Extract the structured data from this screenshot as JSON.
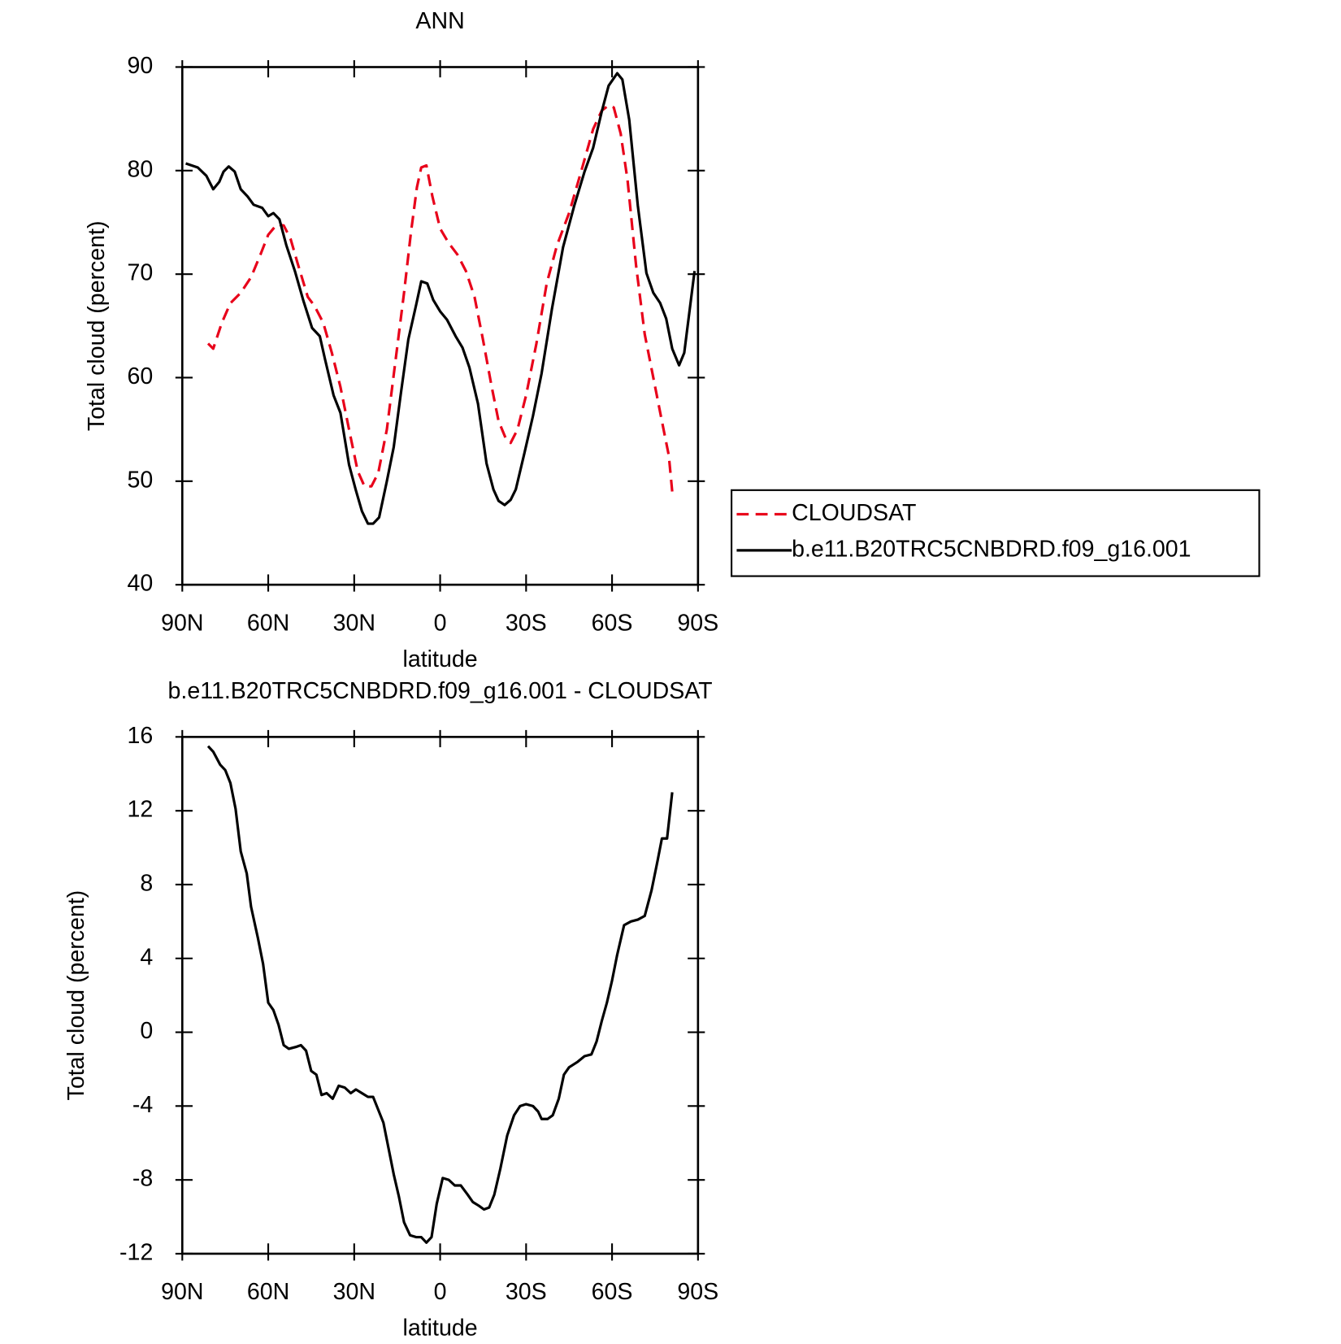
{
  "chart_data": [
    {
      "type": "line",
      "title": "ANN",
      "xlabel": "latitude",
      "ylabel": "Total cloud (percent)",
      "xlim": [
        90,
        -90
      ],
      "xticks": [
        {
          "value": 90,
          "label": "90N"
        },
        {
          "value": 60,
          "label": "60N"
        },
        {
          "value": 30,
          "label": "30N"
        },
        0,
        {
          "value": -30,
          "label": "30S"
        },
        {
          "value": -60,
          "label": "60S"
        },
        {
          "value": -90,
          "label": "90S"
        }
      ],
      "ylim": [
        40,
        90
      ],
      "yticks": [
        40,
        50,
        60,
        70,
        80,
        90
      ],
      "legend": "outside right",
      "series": [
        {
          "name": "CLOUDSAT",
          "color": "#e8001a",
          "linestyle": "dashed",
          "x": [
            81,
            79.2,
            76.2,
            73.2,
            69.6,
            66,
            62.7,
            60,
            57,
            54.6,
            52.2,
            49.8,
            46.2,
            43.8,
            40.8,
            37.8,
            34.8,
            31.8,
            28.8,
            26.4,
            24,
            21.6,
            18.6,
            15.6,
            12.6,
            10.2,
            8.1,
            6.6,
            4.8,
            2.7,
            0,
            -3,
            -6,
            -9,
            -12,
            -15,
            -18,
            -20.4,
            -22.8,
            -24.6,
            -27,
            -30,
            -33.6,
            -37.2,
            -40.8,
            -45,
            -49.2,
            -53.4,
            -56.4,
            -58.8,
            -60.6,
            -63,
            -65.4,
            -68.4,
            -71.4,
            -74.4,
            -77.4,
            -79.8,
            -81
          ],
          "values": [
            63.3,
            62.8,
            65.3,
            67.2,
            68.2,
            69.7,
            71.9,
            73.8,
            74.8,
            74.7,
            73.4,
            71.1,
            67.8,
            66.9,
            65.3,
            62.4,
            59.1,
            55,
            51,
            49.5,
            49.5,
            50.8,
            55,
            61.6,
            68.2,
            74,
            78.4,
            80.3,
            80.5,
            77.5,
            74.4,
            73,
            71.9,
            70.3,
            67.8,
            63.6,
            59.1,
            55.8,
            54.2,
            53.7,
            55,
            58.3,
            63.3,
            69.1,
            72.8,
            75.9,
            79.9,
            84,
            85.8,
            86.3,
            86.1,
            83.6,
            79.1,
            70.8,
            64.2,
            60,
            55.8,
            52.5,
            49
          ]
        },
        {
          "name": "b.e11.B20TRC5CNBDRD.f09_g16.001",
          "color": "#000000",
          "linestyle": "solid",
          "x": [
            88.8,
            84.6,
            81.6,
            79.2,
            77.1,
            75.6,
            73.8,
            71.7,
            69.6,
            67.2,
            65.1,
            62.1,
            60,
            58.2,
            56.1,
            53.7,
            50.7,
            47.7,
            44.7,
            42,
            40.2,
            37.2,
            34.8,
            31.8,
            29.4,
            27.3,
            25.2,
            23.4,
            21.3,
            18.6,
            16.2,
            13.8,
            11.1,
            8.4,
            6.6,
            4.5,
            2.4,
            0,
            -2.4,
            -5.4,
            -7.8,
            -10.2,
            -13.2,
            -16.2,
            -18.6,
            -20.4,
            -22.5,
            -24.6,
            -26.4,
            -29.4,
            -32.4,
            -35.4,
            -39,
            -42.9,
            -46.8,
            -50.4,
            -53.4,
            -56.4,
            -58.8,
            -61.8,
            -63.6,
            -66,
            -69,
            -72,
            -74.4,
            -76.8,
            -78.9,
            -81,
            -83.4,
            -85.2,
            -88.8
          ],
          "values": [
            80.7,
            80.3,
            79.5,
            78.2,
            78.9,
            79.9,
            80.4,
            79.9,
            78.2,
            77.5,
            76.7,
            76.4,
            75.6,
            75.9,
            75.3,
            72.8,
            70.3,
            67.4,
            64.8,
            64,
            61.8,
            58.3,
            56.6,
            51.6,
            49.1,
            47.1,
            45.9,
            45.9,
            46.5,
            50,
            53.3,
            58.3,
            63.7,
            67,
            69.3,
            69.1,
            67.5,
            66.4,
            65.6,
            64,
            62.9,
            61,
            57.5,
            51.7,
            49.2,
            48.1,
            47.7,
            48.2,
            49.2,
            52.7,
            56.3,
            60.4,
            66.6,
            72.6,
            76.6,
            79.9,
            82.2,
            85.7,
            88.2,
            89.4,
            88.8,
            84.9,
            76.6,
            70.1,
            68.2,
            67.2,
            65.7,
            62.8,
            61.2,
            62.4,
            70.3
          ]
        }
      ]
    },
    {
      "type": "line",
      "title": "b.e11.B20TRC5CNBDRD.f09_g16.001 - CLOUDSAT",
      "xlabel": "latitude",
      "ylabel": "Total cloud (percent)",
      "xlim": [
        90,
        -90
      ],
      "xticks": [
        {
          "value": 90,
          "label": "90N"
        },
        {
          "value": 60,
          "label": "60N"
        },
        {
          "value": 30,
          "label": "30N"
        },
        0,
        {
          "value": -30,
          "label": "30S"
        },
        {
          "value": -60,
          "label": "60S"
        },
        {
          "value": -90,
          "label": "90S"
        }
      ],
      "ylim": [
        -12,
        16
      ],
      "yticks": [
        -12,
        -8,
        -4,
        0,
        4,
        8,
        12,
        16
      ],
      "series": [
        {
          "color": "#000000",
          "linestyle": "solid",
          "x": [
            81,
            79.2,
            76.8,
            75,
            73.2,
            71.4,
            69.6,
            67.5,
            66,
            63.6,
            61.8,
            60,
            58.2,
            56.4,
            54.6,
            52.8,
            50.4,
            48.6,
            46.8,
            45,
            43.2,
            41.4,
            39.6,
            37.5,
            35.4,
            33.3,
            31.2,
            29.4,
            27.3,
            25.2,
            23.4,
            21.6,
            19.8,
            18,
            16.2,
            14.4,
            12.6,
            10.5,
            8.4,
            6.6,
            4.8,
            3,
            1.2,
            -0.9,
            -3,
            -5.1,
            -7.2,
            -9.6,
            -11.4,
            -13.5,
            -15.3,
            -17.1,
            -18.9,
            -21,
            -23.4,
            -25.8,
            -27.9,
            -30,
            -32.4,
            -34.2,
            -35.4,
            -37.5,
            -39.3,
            -41.4,
            -43.2,
            -45,
            -48,
            -50.4,
            -52.8,
            -54.6,
            -56.4,
            -58.2,
            -60,
            -61.8,
            -64.2,
            -66.6,
            -69,
            -71.4,
            -73.8,
            -75.9,
            -77.4,
            -79.2,
            -81
          ],
          "values": [
            15.5,
            15.2,
            14.5,
            14.2,
            13.5,
            12.1,
            9.8,
            8.6,
            6.8,
            5.1,
            3.7,
            1.6,
            1.2,
            0.4,
            -0.7,
            -0.9,
            -0.8,
            -0.7,
            -1,
            -2.1,
            -2.3,
            -3.4,
            -3.3,
            -3.6,
            -2.9,
            -3,
            -3.3,
            -3.1,
            -3.3,
            -3.5,
            -3.5,
            -4.2,
            -4.9,
            -6.3,
            -7.7,
            -8.9,
            -10.3,
            -11,
            -11.1,
            -11.1,
            -11.4,
            -11.1,
            -9.3,
            -7.9,
            -8,
            -8.3,
            -8.3,
            -8.8,
            -9.2,
            -9.4,
            -9.6,
            -9.5,
            -8.8,
            -7.4,
            -5.6,
            -4.5,
            -4,
            -3.9,
            -4,
            -4.3,
            -4.7,
            -4.7,
            -4.5,
            -3.6,
            -2.3,
            -1.9,
            -1.6,
            -1.3,
            -1.2,
            -0.5,
            0.6,
            1.6,
            2.8,
            4.2,
            5.8,
            6,
            6.1,
            6.3,
            7.7,
            9.3,
            10.5,
            10.5,
            13
          ]
        }
      ]
    }
  ]
}
